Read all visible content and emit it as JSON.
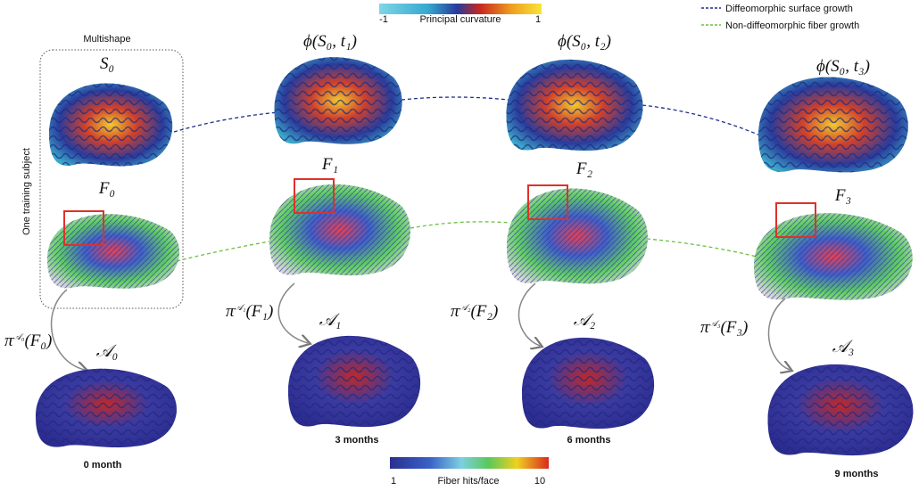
{
  "curvature_bar": {
    "min": "-1",
    "label": "Principal curvature",
    "max": "1"
  },
  "legend": {
    "items": [
      {
        "label": "Diffeomorphic surface growth"
      },
      {
        "label": "Non-diffeomorphic fiber growth"
      }
    ]
  },
  "subject": {
    "title": "Multishape",
    "side_label": "One training subject"
  },
  "columns": [
    {
      "surface": "S₀",
      "fibers": "F₀",
      "projection": {
        "base": "π",
        "sup": "𝒜₀",
        "arg": "(F₀)"
      },
      "atlas": "𝒜₀",
      "age": "0 month"
    },
    {
      "surface": "ϕ(S₀, t₁)",
      "fibers": "F₁",
      "projection": {
        "base": "π",
        "sup": "𝒜₁",
        "arg": "(F₁)"
      },
      "atlas": "𝒜₁",
      "age": "3 months"
    },
    {
      "surface": "ϕ(S₀, t₂)",
      "fibers": "F₂",
      "projection": {
        "base": "π",
        "sup": "𝒜₂",
        "arg": "(F₂)"
      },
      "atlas": "𝒜₂",
      "age": "6 months"
    },
    {
      "surface": "ϕ(S₀, t₃)",
      "fibers": "F₃",
      "projection": {
        "base": "π",
        "sup": "𝒜₃",
        "arg": "(F₃)"
      },
      "atlas": "𝒜₃",
      "age": "9 months"
    }
  ],
  "hits_bar": {
    "min": "1",
    "label": "Fiber hits/face",
    "max": "10"
  }
}
